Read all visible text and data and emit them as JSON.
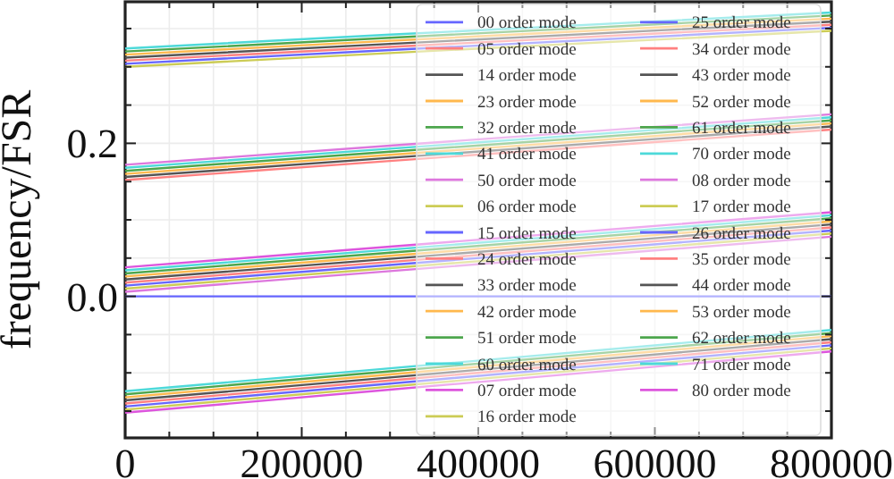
{
  "chart_data": {
    "type": "line",
    "ylabel": "frequency/FSR",
    "x": [
      0,
      300000,
      800000
    ],
    "xlim": [
      0,
      800000
    ],
    "ylim": [
      -0.185,
      0.385
    ],
    "xticks": [
      0,
      {
        "value": 50000,
        "label": null
      },
      {
        "value": 100000,
        "label": null
      },
      {
        "value": 150000,
        "label": null
      },
      200000,
      {
        "value": 250000,
        "label": null
      },
      {
        "value": 300000,
        "label": null
      },
      {
        "value": 350000,
        "label": null
      },
      400000,
      {
        "value": 450000,
        "label": null
      },
      {
        "value": 500000,
        "label": null
      },
      {
        "value": 550000,
        "label": null
      },
      600000,
      {
        "value": 650000,
        "label": null
      },
      {
        "value": 700000,
        "label": null
      },
      {
        "value": 750000,
        "label": null
      },
      800000
    ],
    "yticks": [
      {
        "value": -0.15,
        "label": null
      },
      {
        "value": -0.1,
        "label": null
      },
      {
        "value": -0.05,
        "label": null
      },
      {
        "value": 0,
        "label": "0.0"
      },
      {
        "value": 0.05,
        "label": null
      },
      {
        "value": 0.1,
        "label": null
      },
      {
        "value": 0.15,
        "label": null
      },
      {
        "value": 0.2,
        "label": "0.2"
      },
      {
        "value": 0.25,
        "label": null
      },
      {
        "value": 0.3,
        "label": null
      },
      {
        "value": 0.35,
        "label": null
      }
    ],
    "grid": true,
    "legend": "right",
    "marker": "none",
    "line_style": "solid",
    "series": [
      {
        "name": "00 order mode",
        "color": "#6666ff",
        "values": [
          0,
          0,
          0
        ]
      },
      {
        "name": "05 order mode",
        "color": "#ff8080",
        "values": [
          0.152,
          0.177,
          0.218
        ]
      },
      {
        "name": "14 order mode",
        "color": "#555555",
        "values": [
          0.156,
          0.181,
          0.222
        ]
      },
      {
        "name": "23 order mode",
        "color": "#ffb84d",
        "values": [
          0.16,
          0.185,
          0.226
        ]
      },
      {
        "name": "32 order mode",
        "color": "#4da64d",
        "values": [
          0.164,
          0.189,
          0.23
        ]
      },
      {
        "name": "41 order mode",
        "color": "#4dd9d9",
        "values": [
          0.168,
          0.193,
          0.234
        ]
      },
      {
        "name": "50 order mode",
        "color": "#dd77dd",
        "values": [
          0.172,
          0.197,
          0.238
        ]
      },
      {
        "name": "06 order mode",
        "color": "#cccc55",
        "values": [
          0.3,
          0.318,
          0.347
        ]
      },
      {
        "name": "15 order mode",
        "color": "#6666ff",
        "values": [
          0.304,
          0.322,
          0.351
        ]
      },
      {
        "name": "24 order mode",
        "color": "#ff8080",
        "values": [
          0.308,
          0.326,
          0.355
        ]
      },
      {
        "name": "33 order mode",
        "color": "#555555",
        "values": [
          0.312,
          0.33,
          0.359
        ]
      },
      {
        "name": "42 order mode",
        "color": "#ffb84d",
        "values": [
          0.316,
          0.334,
          0.363
        ]
      },
      {
        "name": "51 order mode",
        "color": "#4da64d",
        "values": [
          0.32,
          0.338,
          0.367
        ]
      },
      {
        "name": "60 order mode",
        "color": "#4dd9d9",
        "values": [
          0.324,
          0.342,
          0.371
        ]
      },
      {
        "name": "07 order mode",
        "color": "#dd55dd",
        "values": [
          -0.152,
          -0.122,
          -0.072
        ]
      },
      {
        "name": "16 order mode",
        "color": "#cccc55",
        "values": [
          -0.148,
          -0.118,
          -0.068
        ]
      },
      {
        "name": "25 order mode",
        "color": "#6666ff",
        "values": [
          -0.144,
          -0.114,
          -0.064
        ]
      },
      {
        "name": "34 order mode",
        "color": "#ff8080",
        "values": [
          -0.14,
          -0.11,
          -0.06
        ]
      },
      {
        "name": "43 order mode",
        "color": "#555555",
        "values": [
          -0.136,
          -0.106,
          -0.056
        ]
      },
      {
        "name": "52 order mode",
        "color": "#ffb84d",
        "values": [
          -0.132,
          -0.102,
          -0.052
        ]
      },
      {
        "name": "61 order mode",
        "color": "#4da64d",
        "values": [
          -0.128,
          -0.098,
          -0.048
        ]
      },
      {
        "name": "70 order mode",
        "color": "#4dd9d9",
        "values": [
          -0.124,
          -0.094,
          -0.044
        ]
      },
      {
        "name": "08 order mode",
        "color": "#dd77dd",
        "values": [
          0.006,
          0.033,
          0.078
        ]
      },
      {
        "name": "17 order mode",
        "color": "#cccc55",
        "values": [
          0.01,
          0.037,
          0.082
        ]
      },
      {
        "name": "26 order mode",
        "color": "#6666ff",
        "values": [
          0.014,
          0.041,
          0.086
        ]
      },
      {
        "name": "35 order mode",
        "color": "#ff8080",
        "values": [
          0.018,
          0.045,
          0.09
        ]
      },
      {
        "name": "44 order mode",
        "color": "#555555",
        "values": [
          0.022,
          0.049,
          0.094
        ]
      },
      {
        "name": "53 order mode",
        "color": "#ffb84d",
        "values": [
          0.026,
          0.053,
          0.098
        ]
      },
      {
        "name": "62 order mode",
        "color": "#4da64d",
        "values": [
          0.03,
          0.057,
          0.102
        ]
      },
      {
        "name": "71 order mode",
        "color": "#4dd9d9",
        "values": [
          0.034,
          0.061,
          0.106
        ]
      },
      {
        "name": "80 order mode",
        "color": "#dd55dd",
        "values": [
          0.038,
          0.065,
          0.11
        ]
      }
    ]
  }
}
